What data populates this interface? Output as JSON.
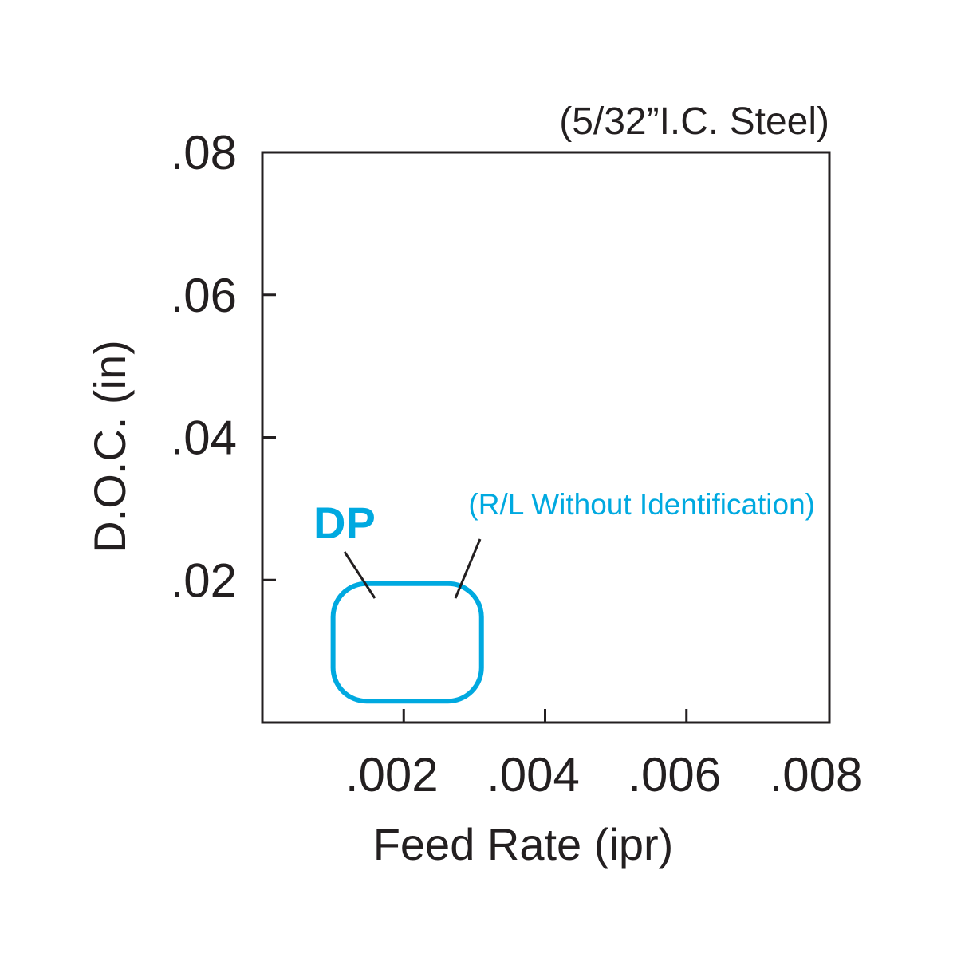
{
  "chart_data": {
    "type": "area",
    "subtitle": "(5/32”I.C. Steel)",
    "xlabel": "Feed Rate (ipr)",
    "ylabel": "D.O.C. (in)",
    "xlim": [
      0,
      0.008
    ],
    "ylim": [
      0,
      0.08
    ],
    "x_ticks": [
      {
        "value": 0.002,
        "label": ".002"
      },
      {
        "value": 0.004,
        "label": ".004"
      },
      {
        "value": 0.006,
        "label": ".006"
      },
      {
        "value": 0.008,
        "label": ".008"
      }
    ],
    "y_ticks": [
      {
        "value": 0.02,
        "label": ".02"
      },
      {
        "value": 0.04,
        "label": ".04"
      },
      {
        "value": 0.06,
        "label": ".06"
      },
      {
        "value": 0.08,
        "label": ".08"
      }
    ],
    "grid": false,
    "regions": [
      {
        "name": "DP",
        "note": "(R/L Without Identification)",
        "x_range": [
          0.001,
          0.0031
        ],
        "y_range": [
          0.003,
          0.0195
        ],
        "color": "#00a9e0"
      }
    ]
  }
}
